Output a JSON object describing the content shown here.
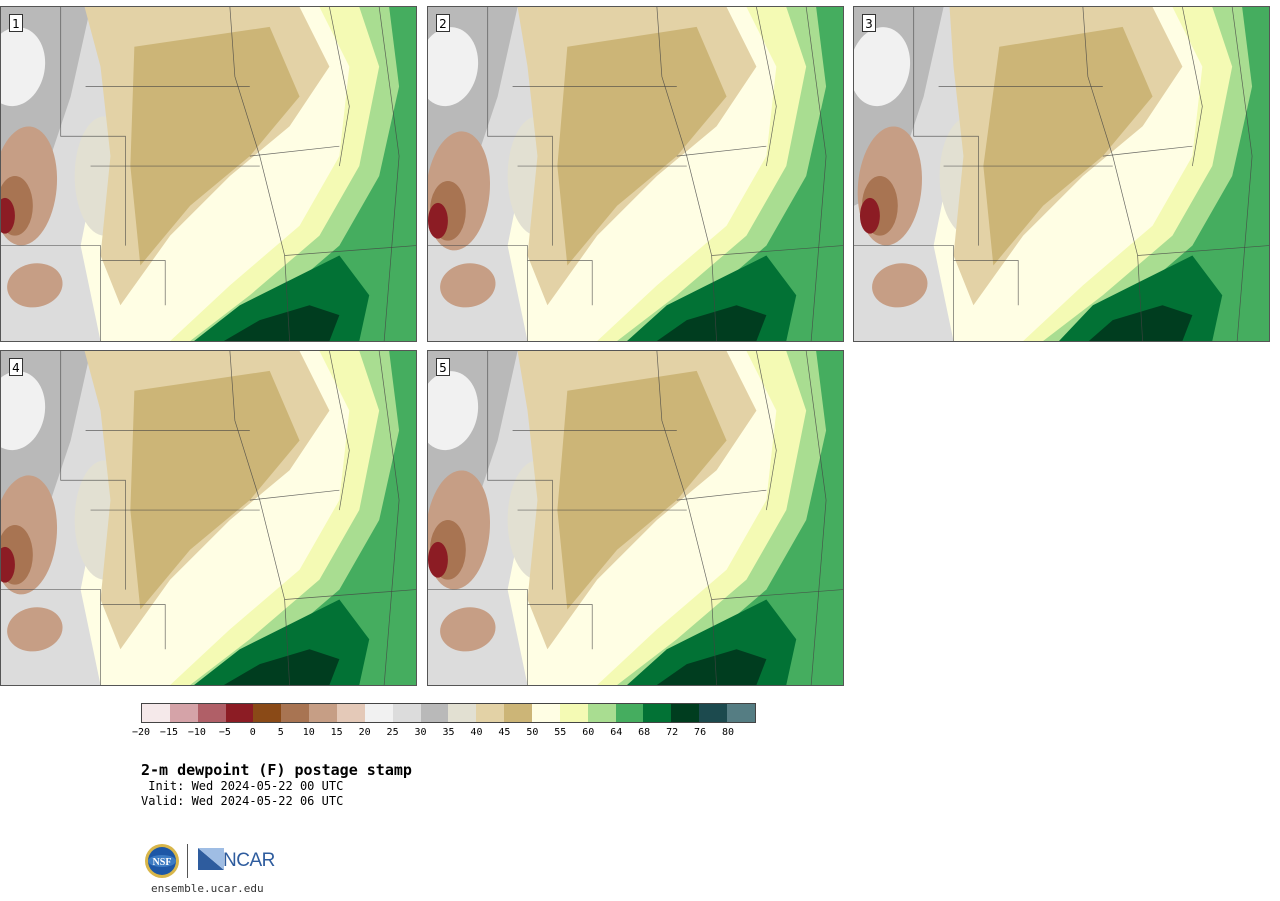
{
  "panels": [
    {
      "label": "1"
    },
    {
      "label": "2"
    },
    {
      "label": "3"
    },
    {
      "label": "4"
    },
    {
      "label": "5"
    }
  ],
  "colorbar": {
    "colors": [
      "#f5e9ea",
      "#d5a3a8",
      "#b05f67",
      "#8c1c24",
      "#8a4a17",
      "#a87452",
      "#c69e85",
      "#e4c9b8",
      "#f1f1f1",
      "#dcdcdc",
      "#b9b9b9",
      "#e2e0d2",
      "#e3d2a6",
      "#ccb577",
      "#fffee4",
      "#f4fab4",
      "#a9dd91",
      "#45ad5f",
      "#027235",
      "#003d1f",
      "#1c4a4e",
      "#557d83"
    ],
    "tick_labels": [
      "−20",
      "−15",
      "−10",
      "−5",
      "0",
      "5",
      "10",
      "15",
      "20",
      "25",
      "30",
      "35",
      "40",
      "45",
      "50",
      "55",
      "60",
      "64",
      "68",
      "72",
      "76",
      "80"
    ]
  },
  "title": "2-m dewpoint (F) postage stamp",
  "init_line": " Init: Wed 2024-05-22 00 UTC",
  "valid_line": "Valid: Wed 2024-05-22 06 UTC",
  "logo": {
    "ncar_text": "NCAR",
    "nsf_text": "NSF"
  },
  "url": "ensemble.ucar.edu"
}
